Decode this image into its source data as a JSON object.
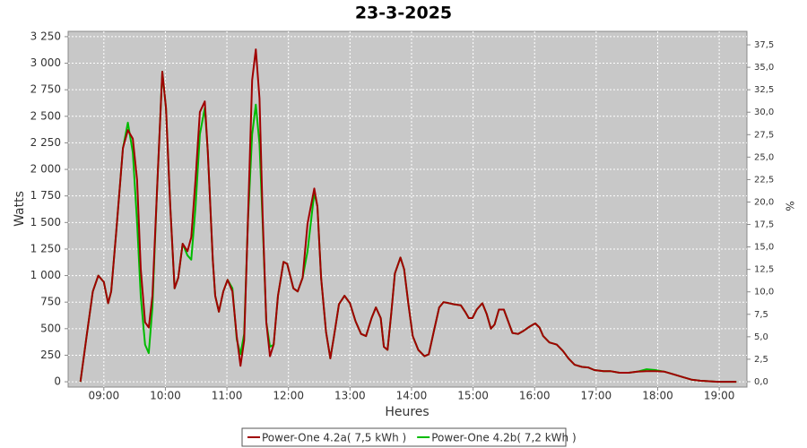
{
  "chart_data": {
    "type": "line",
    "title": "23-3-2025",
    "x_label": "Heures",
    "y_label": "Watts",
    "y2_label": "%",
    "x": [
      8.62,
      8.72,
      8.82,
      8.91,
      9.0,
      9.07,
      9.12,
      9.2,
      9.31,
      9.39,
      9.47,
      9.54,
      9.6,
      9.67,
      9.73,
      9.79,
      9.86,
      9.95,
      10.01,
      10.08,
      10.15,
      10.21,
      10.28,
      10.36,
      10.42,
      10.49,
      10.56,
      10.64,
      10.69,
      10.77,
      10.81,
      10.87,
      10.94,
      11.01,
      11.09,
      11.16,
      11.22,
      11.28,
      11.34,
      11.41,
      11.47,
      11.53,
      11.58,
      11.64,
      11.7,
      11.76,
      11.83,
      11.92,
      11.98,
      12.08,
      12.15,
      12.23,
      12.31,
      12.42,
      12.47,
      12.53,
      12.61,
      12.68,
      12.74,
      12.82,
      12.91,
      13.0,
      13.09,
      13.18,
      13.26,
      13.35,
      13.42,
      13.5,
      13.55,
      13.61,
      13.67,
      13.73,
      13.82,
      13.88,
      13.95,
      14.02,
      14.11,
      14.21,
      14.28,
      14.36,
      14.45,
      14.52,
      14.61,
      14.69,
      14.8,
      14.87,
      14.93,
      14.99,
      15.06,
      15.15,
      15.22,
      15.29,
      15.35,
      15.42,
      15.5,
      15.57,
      15.64,
      15.73,
      15.82,
      15.92,
      16.01,
      16.08,
      16.14,
      16.24,
      16.36,
      16.46,
      16.55,
      16.65,
      16.77,
      16.87,
      16.97,
      17.12,
      17.23,
      17.38,
      17.53,
      17.67,
      17.82,
      17.96,
      18.11,
      18.26,
      18.4,
      18.55,
      18.69,
      18.98,
      19.28
    ],
    "series": [
      {
        "name": "Power-One 4.2a( 7,5 kWh )",
        "color": "#a00000",
        "values": [
          0,
          430,
          850,
          1000,
          940,
          740,
          850,
          1400,
          2200,
          2370,
          2290,
          1900,
          1060,
          560,
          510,
          810,
          1740,
          2920,
          2580,
          1650,
          880,
          980,
          1300,
          1230,
          1360,
          1910,
          2540,
          2640,
          2160,
          1150,
          810,
          660,
          850,
          960,
          850,
          430,
          150,
          390,
          1490,
          2840,
          3130,
          2670,
          1570,
          560,
          240,
          350,
          810,
          1130,
          1110,
          880,
          850,
          980,
          1490,
          1820,
          1650,
          980,
          470,
          220,
          430,
          730,
          810,
          740,
          570,
          450,
          430,
          600,
          700,
          600,
          330,
          300,
          640,
          1020,
          1170,
          1060,
          730,
          430,
          300,
          240,
          260,
          470,
          700,
          750,
          740,
          730,
          720,
          660,
          600,
          600,
          680,
          740,
          640,
          500,
          540,
          680,
          680,
          570,
          460,
          450,
          480,
          520,
          550,
          510,
          430,
          370,
          350,
          290,
          220,
          160,
          140,
          135,
          110,
          100,
          100,
          85,
          85,
          95,
          100,
          100,
          95,
          70,
          45,
          20,
          10,
          0,
          0
        ]
      },
      {
        "name": "Power-One 4.2b( 7,2 kWh )",
        "color": "#00bb00",
        "values": [
          0,
          430,
          850,
          1000,
          940,
          740,
          850,
          1400,
          2200,
          2440,
          2160,
          1500,
          800,
          350,
          270,
          700,
          1740,
          2920,
          2580,
          1650,
          880,
          980,
          1300,
          1190,
          1150,
          1650,
          2330,
          2580,
          2160,
          1150,
          810,
          660,
          850,
          960,
          880,
          400,
          260,
          450,
          1490,
          2330,
          2610,
          2240,
          1500,
          560,
          330,
          350,
          810,
          1130,
          1110,
          880,
          850,
          980,
          1230,
          1780,
          1650,
          980,
          470,
          220,
          430,
          730,
          810,
          740,
          570,
          450,
          430,
          600,
          700,
          600,
          330,
          300,
          640,
          1020,
          1170,
          1060,
          730,
          430,
          300,
          240,
          260,
          470,
          700,
          750,
          740,
          730,
          720,
          660,
          600,
          600,
          680,
          740,
          640,
          500,
          540,
          680,
          680,
          570,
          460,
          450,
          480,
          520,
          550,
          510,
          430,
          370,
          350,
          290,
          220,
          160,
          140,
          135,
          110,
          100,
          100,
          85,
          85,
          95,
          118,
          110,
          95,
          70,
          45,
          20,
          10,
          0,
          0
        ]
      }
    ],
    "xlim": [
      8.42,
      19.45
    ],
    "xticks": [
      {
        "value": 9,
        "label": "09:00"
      },
      {
        "value": 10,
        "label": "10:00"
      },
      {
        "value": 11,
        "label": "11:00"
      },
      {
        "value": 12,
        "label": "12:00"
      },
      {
        "value": 13,
        "label": "13:00"
      },
      {
        "value": 14,
        "label": "14:00"
      },
      {
        "value": 15,
        "label": "15:00"
      },
      {
        "value": 16,
        "label": "16:00"
      },
      {
        "value": 17,
        "label": "17:00"
      },
      {
        "value": 18,
        "label": "18:00"
      },
      {
        "value": 19,
        "label": "19:00"
      }
    ],
    "ylim": [
      -50,
      3300
    ],
    "yticks": [
      0,
      250,
      500,
      750,
      {
        "value": 1000,
        "label": "1 000"
      },
      {
        "value": 1250,
        "label": "1 250"
      },
      {
        "value": 1500,
        "label": "1 500"
      },
      {
        "value": 1750,
        "label": "1 750"
      },
      {
        "value": 2000,
        "label": "2 000"
      },
      {
        "value": 2250,
        "label": "2 250"
      },
      {
        "value": 2500,
        "label": "2 500"
      },
      {
        "value": 2750,
        "label": "2 750"
      },
      {
        "value": 3000,
        "label": "3 000"
      },
      {
        "value": 3250,
        "label": "3 250"
      }
    ],
    "y2lim": [
      -0.6,
      39
    ],
    "y2ticks": [
      {
        "value": 0,
        "label": "0,0"
      },
      {
        "value": 2.5,
        "label": "2,5"
      },
      {
        "value": 5,
        "label": "5,0"
      },
      {
        "value": 7.5,
        "label": "7,5"
      },
      {
        "value": 10,
        "label": "10,0"
      },
      {
        "value": 12.5,
        "label": "12,5"
      },
      {
        "value": 15,
        "label": "15,0"
      },
      {
        "value": 17.5,
        "label": "17,5"
      },
      {
        "value": 20,
        "label": "20,0"
      },
      {
        "value": 22.5,
        "label": "22,5"
      },
      {
        "value": 25,
        "label": "25,0"
      },
      {
        "value": 27.5,
        "label": "27,5"
      },
      {
        "value": 30,
        "label": "30,0"
      },
      {
        "value": 32.5,
        "label": "32,5"
      },
      {
        "value": 35,
        "label": "35,0"
      },
      {
        "value": 37.5,
        "label": "37,5"
      }
    ],
    "grid": true,
    "legend": "bottom"
  }
}
